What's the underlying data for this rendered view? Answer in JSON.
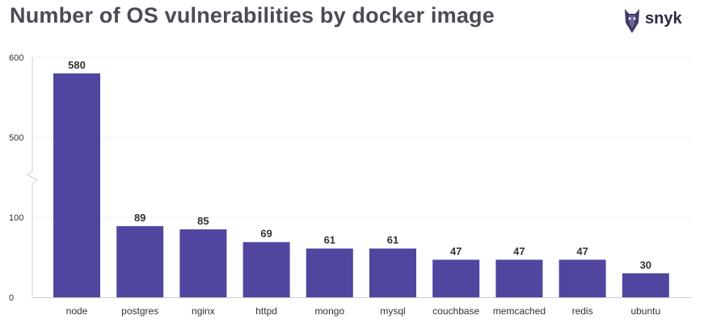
{
  "title": "Number of OS vulnerabilities by docker image",
  "brand": {
    "name": "snyk",
    "icon": "snyk-dog-logo-icon"
  },
  "colors": {
    "bar": "#5046a0",
    "text": "#333333",
    "axis": "#cccccc",
    "grid": "#efefef",
    "title": "#4b4b55"
  },
  "chart_data": {
    "type": "bar",
    "title": "Number of OS vulnerabilities by docker image",
    "xlabel": "",
    "ylabel": "",
    "categories": [
      "node",
      "postgres",
      "nginx",
      "httpd",
      "mongo",
      "mysql",
      "couchbase",
      "memcached",
      "redis",
      "ubuntu"
    ],
    "values": [
      580,
      89,
      85,
      69,
      61,
      61,
      47,
      47,
      47,
      30
    ],
    "y_ticks": [
      0,
      100,
      500,
      600
    ],
    "y_axis_break": [
      100,
      500
    ],
    "ylim": [
      0,
      600
    ],
    "grid": true,
    "legend": "none"
  }
}
